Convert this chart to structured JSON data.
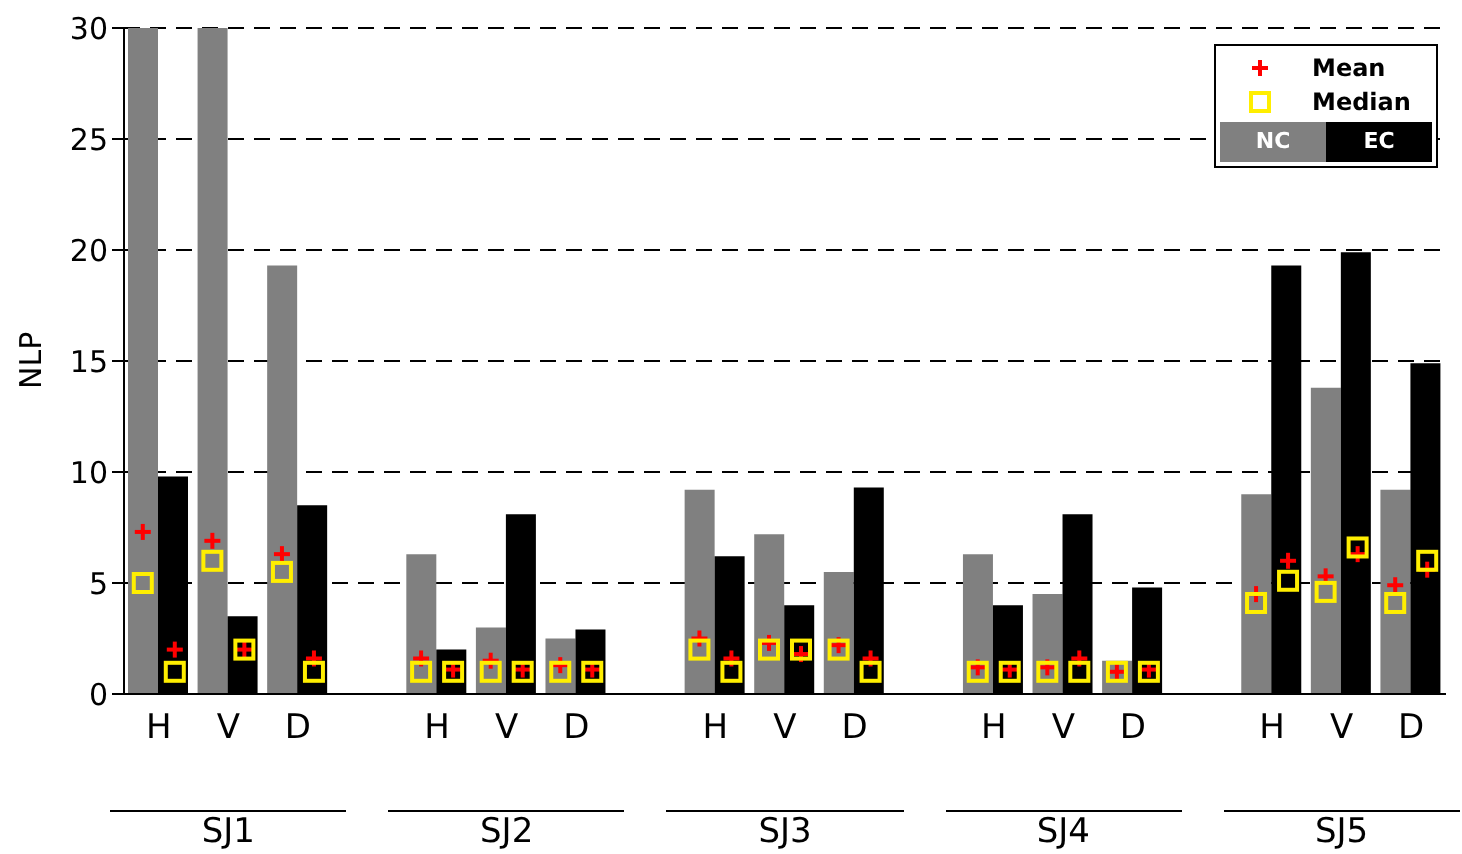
{
  "chart_data": {
    "type": "bar",
    "ylabel": "NLP",
    "categories": [
      "H",
      "V",
      "D",
      null,
      "H",
      "V",
      "D",
      null,
      "H",
      "V",
      "D",
      null,
      "H",
      "V",
      "D",
      null,
      "H",
      "V",
      "D"
    ],
    "series": [
      {
        "name": "NC",
        "color": "#808080",
        "values": [
          30,
          30,
          19.3,
          null,
          6.3,
          3,
          2.5,
          null,
          9.2,
          7.2,
          5.5,
          null,
          6.3,
          4.5,
          1.5,
          null,
          9,
          13.8,
          9.2
        ]
      },
      {
        "name": "EC",
        "color": "#000000",
        "values": [
          9.8,
          3.5,
          8.5,
          null,
          2,
          8.1,
          2.9,
          null,
          6.2,
          4,
          9.3,
          null,
          4,
          8.1,
          4.8,
          null,
          19.3,
          19.9,
          14.9
        ]
      },
      {
        "name": "Mean",
        "type": "scatter",
        "marker": "cross",
        "color": "#ff0000",
        "values": [
          7.3,
          6.9,
          6.3,
          null,
          1.6,
          1.5,
          1.3,
          null,
          2.5,
          2.3,
          2.2,
          null,
          1.2,
          1.2,
          1,
          null,
          4.5,
          5.3,
          4.9
        ]
      },
      {
        "type": "scatter",
        "marker": "cross",
        "color": "#ff0000",
        "values": [
          2,
          2,
          1.6,
          null,
          1.1,
          1.1,
          1.1,
          null,
          1.6,
          1.8,
          1.6,
          null,
          1.1,
          1.6,
          1.1,
          null,
          6,
          6.3,
          5.6
        ]
      },
      {
        "name": "Median",
        "type": "scatter",
        "marker": "square",
        "color": "#ffee00",
        "values": [
          5,
          6,
          5.5,
          null,
          1,
          1,
          1,
          null,
          2,
          2,
          2,
          null,
          1,
          1,
          1,
          null,
          4.1,
          4.6,
          4.1
        ]
      },
      {
        "type": "scatter",
        "marker": "square",
        "color": "#ffee00",
        "values": [
          1,
          2,
          1,
          null,
          1,
          1,
          1,
          null,
          1,
          2,
          1,
          null,
          1,
          1,
          1,
          null,
          5.1,
          6.6,
          6
        ]
      }
    ],
    "ylim": [
      0,
      30
    ],
    "yticks": [
      0,
      5,
      10,
      15,
      20,
      25,
      30
    ],
    "grid": "y",
    "legend": "top right",
    "annotations": [
      "SJ1",
      "SJ2",
      "SJ3",
      "SJ4",
      "SJ5"
    ]
  }
}
